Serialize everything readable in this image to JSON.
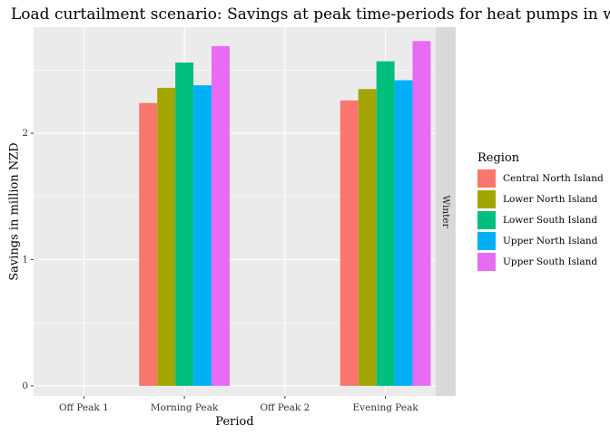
{
  "chart_data": {
    "type": "bar",
    "title": "Load curtailment scenario: Savings at peak time-periods for heat pumps in winter",
    "xlabel": "Period",
    "ylabel": "Savings in million NZD",
    "categories": [
      "Off Peak 1",
      "Morning Peak",
      "Off Peak 2",
      "Evening Peak"
    ],
    "facet_label": "Winter",
    "ylim": [
      -0.08,
      2.84
    ],
    "yticks": [
      0,
      1,
      2
    ],
    "grid": true,
    "legend": {
      "title": "Region",
      "position": "right"
    },
    "series": [
      {
        "name": "Central North Island",
        "color": "#F8766D",
        "values": [
          0,
          2.24,
          0,
          2.26
        ]
      },
      {
        "name": "Lower North Island",
        "color": "#A3A500",
        "values": [
          0,
          2.36,
          0,
          2.35
        ]
      },
      {
        "name": "Lower South Island",
        "color": "#00BF7D",
        "values": [
          0,
          2.56,
          0,
          2.57
        ]
      },
      {
        "name": "Upper North Island",
        "color": "#00B0F6",
        "values": [
          0,
          2.38,
          0,
          2.42
        ]
      },
      {
        "name": "Upper South Island",
        "color": "#E76BF3",
        "values": [
          0,
          2.69,
          0,
          2.73
        ]
      }
    ]
  }
}
